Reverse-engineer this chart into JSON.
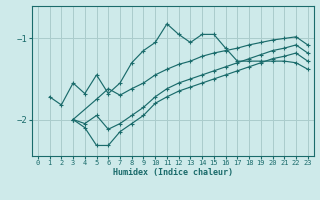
{
  "xlabel": "Humidex (Indice chaleur)",
  "bg_color": "#ceeaea",
  "grid_color": "#aacccc",
  "line_color": "#1a6b6b",
  "xlim": [
    -0.5,
    23.5
  ],
  "ylim": [
    -2.45,
    -0.6
  ],
  "yticks": [
    -2.0,
    -1.0
  ],
  "xticks": [
    0,
    1,
    2,
    3,
    4,
    5,
    6,
    7,
    8,
    9,
    10,
    11,
    12,
    13,
    14,
    15,
    16,
    17,
    18,
    19,
    20,
    21,
    22,
    23
  ],
  "curve1_x": [
    1,
    2,
    3,
    4,
    5,
    6,
    7,
    8,
    9,
    10,
    11,
    12,
    13,
    14,
    15,
    16,
    17,
    18,
    19,
    20,
    21,
    22,
    23
  ],
  "curve1_y": [
    -1.72,
    -1.82,
    -1.55,
    -1.68,
    -1.45,
    -1.68,
    -1.55,
    -1.3,
    -1.15,
    -1.05,
    -0.82,
    -0.95,
    -1.05,
    -0.95,
    -0.95,
    -1.12,
    -1.28,
    -1.28,
    -1.28,
    -1.28,
    -1.28,
    -1.3,
    -1.38
  ],
  "curve2_x": [
    3,
    5,
    6,
    7,
    8,
    9,
    10,
    11,
    12,
    13,
    14,
    15,
    16,
    17,
    18,
    19,
    20,
    21,
    22,
    23
  ],
  "curve2_y": [
    -2.0,
    -1.75,
    -1.62,
    -1.7,
    -1.62,
    -1.55,
    -1.45,
    -1.38,
    -1.32,
    -1.28,
    -1.22,
    -1.18,
    -1.15,
    -1.12,
    -1.08,
    -1.05,
    -1.02,
    -1.0,
    -0.98,
    -1.08
  ],
  "curve3_x": [
    3,
    4,
    5,
    6,
    7,
    8,
    9,
    10,
    11,
    12,
    13,
    14,
    15,
    16,
    17,
    18,
    19,
    20,
    21,
    22,
    23
  ],
  "curve3_y": [
    -2.0,
    -2.05,
    -1.95,
    -2.12,
    -2.05,
    -1.95,
    -1.85,
    -1.72,
    -1.62,
    -1.55,
    -1.5,
    -1.45,
    -1.4,
    -1.35,
    -1.3,
    -1.25,
    -1.2,
    -1.15,
    -1.12,
    -1.08,
    -1.18
  ],
  "curve4_x": [
    3,
    4,
    5,
    6,
    7,
    8,
    9,
    10,
    11,
    12,
    13,
    14,
    15,
    16,
    17,
    18,
    19,
    20,
    21,
    22,
    23
  ],
  "curve4_y": [
    -2.0,
    -2.1,
    -2.32,
    -2.32,
    -2.15,
    -2.05,
    -1.95,
    -1.8,
    -1.72,
    -1.65,
    -1.6,
    -1.55,
    -1.5,
    -1.45,
    -1.4,
    -1.35,
    -1.3,
    -1.25,
    -1.22,
    -1.18,
    -1.28
  ]
}
